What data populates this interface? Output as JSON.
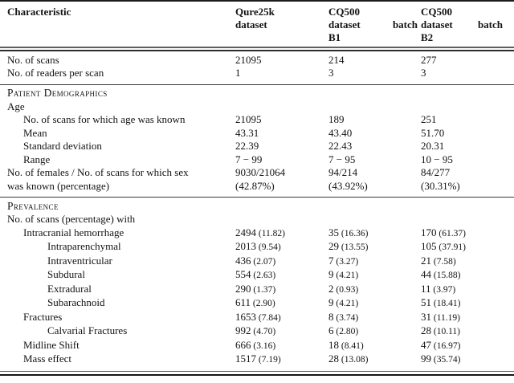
{
  "colors": {
    "background": "#ffffff",
    "text": "#131313",
    "rule_heavy": "#1c1c1c",
    "rule_light": "#5f5f5f"
  },
  "table": {
    "header": {
      "characteristic": "Characteristic",
      "col_qure25k": {
        "line1": "Qure25k",
        "line2": "dataset"
      },
      "col_b1": {
        "line1": "CQ500",
        "line2a": "dataset",
        "line2b": "batch",
        "line3": "B1"
      },
      "col_b2": {
        "line1": "CQ500",
        "line2a": "dataset",
        "line2b": "batch",
        "line3": "B2"
      }
    },
    "sections": [
      {
        "rows": [
          {
            "label": "No. of scans",
            "indent": 0,
            "values": [
              "21095",
              "214",
              "277"
            ]
          },
          {
            "label": "No. of readers per scan",
            "indent": 0,
            "values": [
              "1",
              "3",
              "3"
            ]
          }
        ]
      },
      {
        "rows": [
          {
            "type": "heading",
            "label": "Patient Demographics",
            "values": [
              "",
              "",
              ""
            ]
          },
          {
            "label": "Age",
            "indent": 0,
            "values": [
              "",
              "",
              ""
            ]
          },
          {
            "label": "No. of scans for which age was known",
            "indent": 1,
            "values": [
              "21095",
              "189",
              "251"
            ]
          },
          {
            "label": "Mean",
            "indent": 1,
            "values": [
              "43.31",
              "43.40",
              "51.70"
            ]
          },
          {
            "label": "Standard deviation",
            "indent": 1,
            "values": [
              "22.39",
              "22.43",
              "20.31"
            ]
          },
          {
            "label": "Range",
            "indent": 1,
            "values": [
              "7 − 99",
              "7 − 95",
              "10 − 95"
            ]
          },
          {
            "label": "No. of females / No. of scans for which sex\nwas known (percentage)",
            "indent": 0,
            "values": [
              "9030/21064\n(42.87%)",
              "94/214\n(43.92%)",
              "84/277\n(30.31%)"
            ]
          }
        ]
      },
      {
        "rows": [
          {
            "type": "heading",
            "label": "Prevalence",
            "values": [
              "",
              "",
              ""
            ]
          },
          {
            "label": "No. of scans (percentage) with",
            "indent": 0,
            "values": [
              "",
              "",
              ""
            ]
          },
          {
            "label": "Intracranial hemorrhage",
            "indent": 1,
            "values": [
              "2494 (11.82)",
              "35 (16.36)",
              "170 (61.37)"
            ]
          },
          {
            "label": "Intraparenchymal",
            "indent": 2,
            "values": [
              "2013 (9.54)",
              "29 (13.55)",
              "105 (37.91)"
            ]
          },
          {
            "label": "Intraventricular",
            "indent": 2,
            "values": [
              "436 (2.07)",
              "7 (3.27)",
              "21 (7.58)"
            ]
          },
          {
            "label": "Subdural",
            "indent": 2,
            "values": [
              "554 (2.63)",
              "9 (4.21)",
              "44 (15.88)"
            ]
          },
          {
            "label": "Extradural",
            "indent": 2,
            "values": [
              "290 (1.37)",
              "2 (0.93)",
              "11 (3.97)"
            ]
          },
          {
            "label": "Subarachnoid",
            "indent": 2,
            "values": [
              "611 (2.90)",
              "9 (4.21)",
              "51 (18.41)"
            ]
          },
          {
            "label": "Fractures",
            "indent": 1,
            "values": [
              "1653 (7.84)",
              "8 (3.74)",
              "31 (11.19)"
            ]
          },
          {
            "label": "Calvarial Fractures",
            "indent": 2,
            "values": [
              "992 (4.70)",
              "6 (2.80)",
              "28 (10.11)"
            ]
          },
          {
            "label": "Midline Shift",
            "indent": 1,
            "values": [
              "666 (3.16)",
              "18 (8.41)",
              "47 (16.97)"
            ]
          },
          {
            "label": "Mass effect",
            "indent": 1,
            "values": [
              "1517 (7.19)",
              "28 (13.08)",
              "99 (35.74)"
            ]
          }
        ]
      }
    ]
  }
}
